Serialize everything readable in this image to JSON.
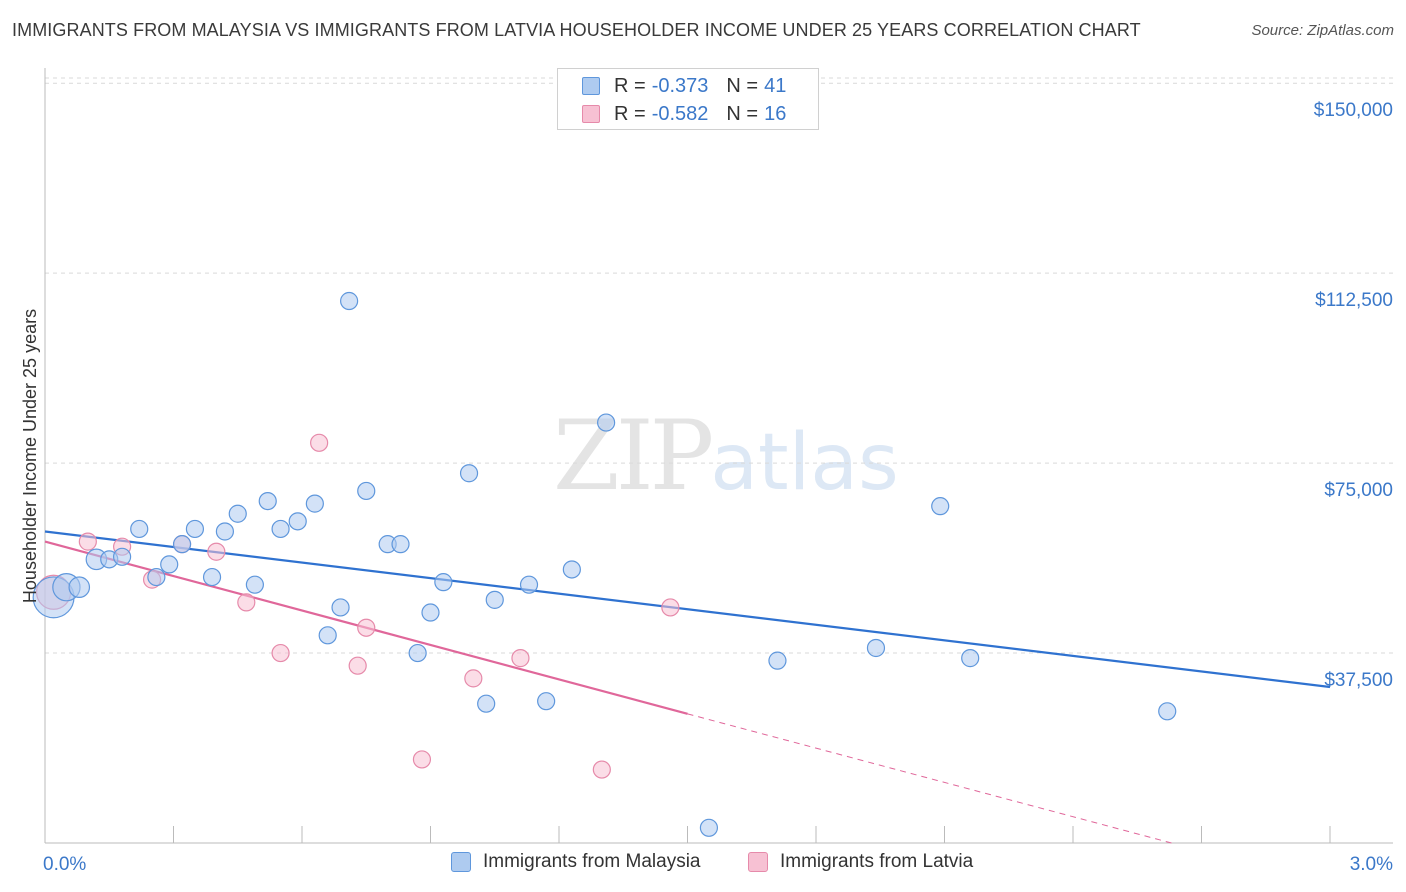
{
  "header": {
    "title": "IMMIGRANTS FROM MALAYSIA VS IMMIGRANTS FROM LATVIA HOUSEHOLDER INCOME UNDER 25 YEARS CORRELATION CHART",
    "source": "Source: ZipAtlas.com"
  },
  "watermark": {
    "zip": "ZIP",
    "atlas": "atlas"
  },
  "legend": {
    "malaysia": {
      "r_label": "R =",
      "r_value": "-0.373",
      "n_label": "N =",
      "n_value": "41"
    },
    "latvia": {
      "r_label": "R =",
      "r_value": "-0.582",
      "n_label": "N =",
      "n_value": "16"
    }
  },
  "bottom_legend": {
    "malaysia": "Immigrants from Malaysia",
    "latvia": "Immigrants from Latvia"
  },
  "colors": {
    "malaysia_fill": "#aecbf0",
    "malaysia_stroke": "#5f97dc",
    "malaysia_line": "#2f72d0",
    "latvia_fill": "#f7c1d3",
    "latvia_stroke": "#e68aaa",
    "latvia_line": "#e0679a",
    "grid": "#d9d9d9",
    "tick_text": "#3b78c9"
  },
  "chart_data": {
    "type": "scatter",
    "title": "IMMIGRANTS FROM MALAYSIA VS IMMIGRANTS FROM LATVIA HOUSEHOLDER INCOME UNDER 25 YEARS CORRELATION CHART",
    "xlabel": "",
    "ylabel": "Householder Income Under 25 years",
    "xlim": [
      0,
      3.0
    ],
    "ylim": [
      0,
      153000
    ],
    "y_ticks": [
      {
        "value": 150000,
        "label": "$150,000"
      },
      {
        "value": 112500,
        "label": "$112,500"
      },
      {
        "value": 75000,
        "label": "$75,000"
      },
      {
        "value": 37500,
        "label": "$37,500"
      }
    ],
    "x_tick_labels": [
      {
        "value": 0,
        "label": "0.0%"
      },
      {
        "value": 3.0,
        "label": "3.0%"
      }
    ],
    "x_minor_ticks": [
      0.3,
      0.6,
      0.9,
      1.2,
      1.5,
      1.8,
      2.1,
      2.4,
      2.7,
      3.0
    ],
    "grid": true,
    "series": [
      {
        "name": "Immigrants from Malaysia",
        "points": [
          [
            0.02,
            48500,
            24
          ],
          [
            0.05,
            50500,
            16
          ],
          [
            0.08,
            50500,
            12
          ],
          [
            0.12,
            56000,
            12
          ],
          [
            0.15,
            56000,
            10
          ],
          [
            0.18,
            56500,
            10
          ],
          [
            0.22,
            62000,
            10
          ],
          [
            0.26,
            52500,
            10
          ],
          [
            0.29,
            55000,
            10
          ],
          [
            0.32,
            59000,
            10
          ],
          [
            0.35,
            62000,
            10
          ],
          [
            0.39,
            52500,
            10
          ],
          [
            0.42,
            61500,
            10
          ],
          [
            0.45,
            65000,
            10
          ],
          [
            0.49,
            51000,
            10
          ],
          [
            0.52,
            67500,
            10
          ],
          [
            0.55,
            62000,
            10
          ],
          [
            0.59,
            63500,
            10
          ],
          [
            0.63,
            67000,
            10
          ],
          [
            0.66,
            41000,
            10
          ],
          [
            0.69,
            46500,
            10
          ],
          [
            0.71,
            107000,
            10
          ],
          [
            0.75,
            69500,
            10
          ],
          [
            0.8,
            59000,
            10
          ],
          [
            0.83,
            59000,
            10
          ],
          [
            0.87,
            37500,
            10
          ],
          [
            0.9,
            45500,
            10
          ],
          [
            0.93,
            51500,
            10
          ],
          [
            0.99,
            73000,
            10
          ],
          [
            1.03,
            27500,
            10
          ],
          [
            1.05,
            48000,
            10
          ],
          [
            1.13,
            51000,
            10
          ],
          [
            1.17,
            28000,
            10
          ],
          [
            1.23,
            54000,
            10
          ],
          [
            1.31,
            83000,
            10
          ],
          [
            1.55,
            3000,
            10
          ],
          [
            1.71,
            36000,
            10
          ],
          [
            1.94,
            38500,
            10
          ],
          [
            2.09,
            66500,
            10
          ],
          [
            2.16,
            36500,
            10
          ],
          [
            2.62,
            26000,
            10
          ]
        ],
        "trend": {
          "x0": 0.0,
          "y0": 61500,
          "x1": 3.0,
          "y1": 30800
        }
      },
      {
        "name": "Immigrants from Latvia",
        "points": [
          [
            0.02,
            49500,
            20
          ],
          [
            0.1,
            59500,
            10
          ],
          [
            0.18,
            58500,
            10
          ],
          [
            0.25,
            52000,
            10
          ],
          [
            0.32,
            59000,
            10
          ],
          [
            0.4,
            57500,
            10
          ],
          [
            0.47,
            47500,
            10
          ],
          [
            0.55,
            37500,
            10
          ],
          [
            0.64,
            79000,
            10
          ],
          [
            0.73,
            35000,
            10
          ],
          [
            0.75,
            42500,
            10
          ],
          [
            0.88,
            16500,
            10
          ],
          [
            1.0,
            32500,
            10
          ],
          [
            1.11,
            36500,
            10
          ],
          [
            1.3,
            14500,
            10
          ],
          [
            1.46,
            46500,
            10
          ]
        ],
        "trend": {
          "x0": 0.0,
          "y0": 59500,
          "x1": 1.5,
          "y1": 25500
        },
        "trend_extension": {
          "x0": 1.5,
          "y0": 25500,
          "x1": 2.63,
          "y1": 0
        }
      }
    ]
  }
}
